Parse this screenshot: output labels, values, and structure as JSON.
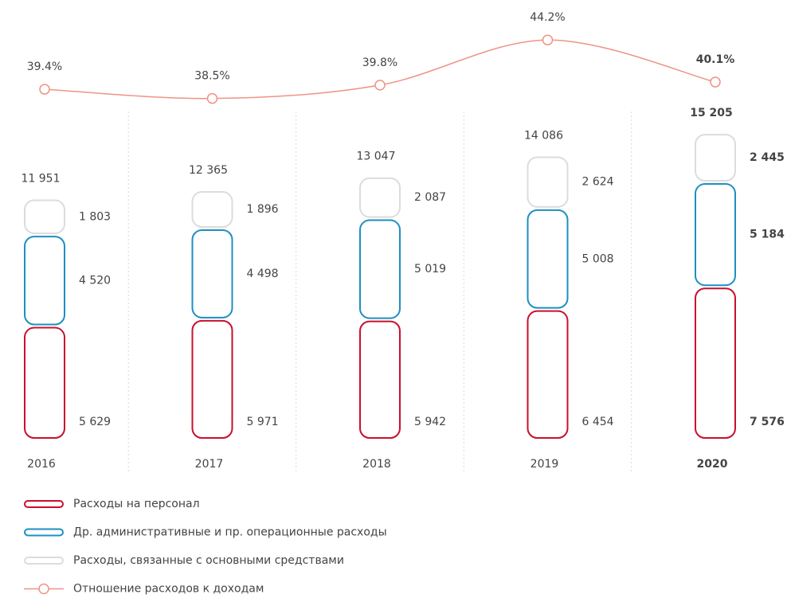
{
  "chart_data": {
    "type": "stacked-bar-line",
    "categories": [
      "2016",
      "2017",
      "2018",
      "2019",
      "2020"
    ],
    "highlight": 4,
    "ylim": [
      0,
      16000
    ],
    "y2lim": [
      37,
      46
    ],
    "grid": true,
    "series": [
      {
        "name": "Расходы на персонал",
        "color": "#c8102e",
        "label_color": "#e0537a",
        "strong_color": "#c8102e",
        "values": [
          5629,
          5971,
          5942,
          6454,
          7576
        ],
        "value_labels": [
          "5 629",
          "5 971",
          "5 942",
          "6 454",
          "7 576"
        ]
      },
      {
        "name": "Др. административные и пр. операционные расходы",
        "color": "#1d8fc2",
        "label_color": "#45aede",
        "strong_color": "#1d8fc2",
        "values": [
          4520,
          4498,
          5019,
          5008,
          5184
        ],
        "value_labels": [
          "4 520",
          "4 498",
          "5 019",
          "5 008",
          "5 184"
        ]
      },
      {
        "name": "Расходы, связанные с основными средствами",
        "color": "#dcdcdc",
        "label_color": "#9a9a9a",
        "strong_color": "#555555",
        "values": [
          1803,
          1896,
          2087,
          2624,
          2445
        ],
        "value_labels": [
          "1 803",
          "1 896",
          "2 087",
          "2 624",
          "2 445"
        ]
      },
      {
        "name": "Отношение расходов к доходам",
        "color": "#ee9484",
        "axis": "y2",
        "values": [
          39.4,
          38.5,
          39.8,
          44.2,
          40.1
        ],
        "value_labels": [
          "39.4%",
          "38.5%",
          "39.8%",
          "44.2%",
          "40.1%"
        ]
      }
    ],
    "totals": {
      "values": [
        11951,
        12365,
        13047,
        14086,
        15205
      ],
      "value_labels": [
        "11 951",
        "12 365",
        "13 047",
        "14 086",
        "15 205"
      ]
    }
  }
}
